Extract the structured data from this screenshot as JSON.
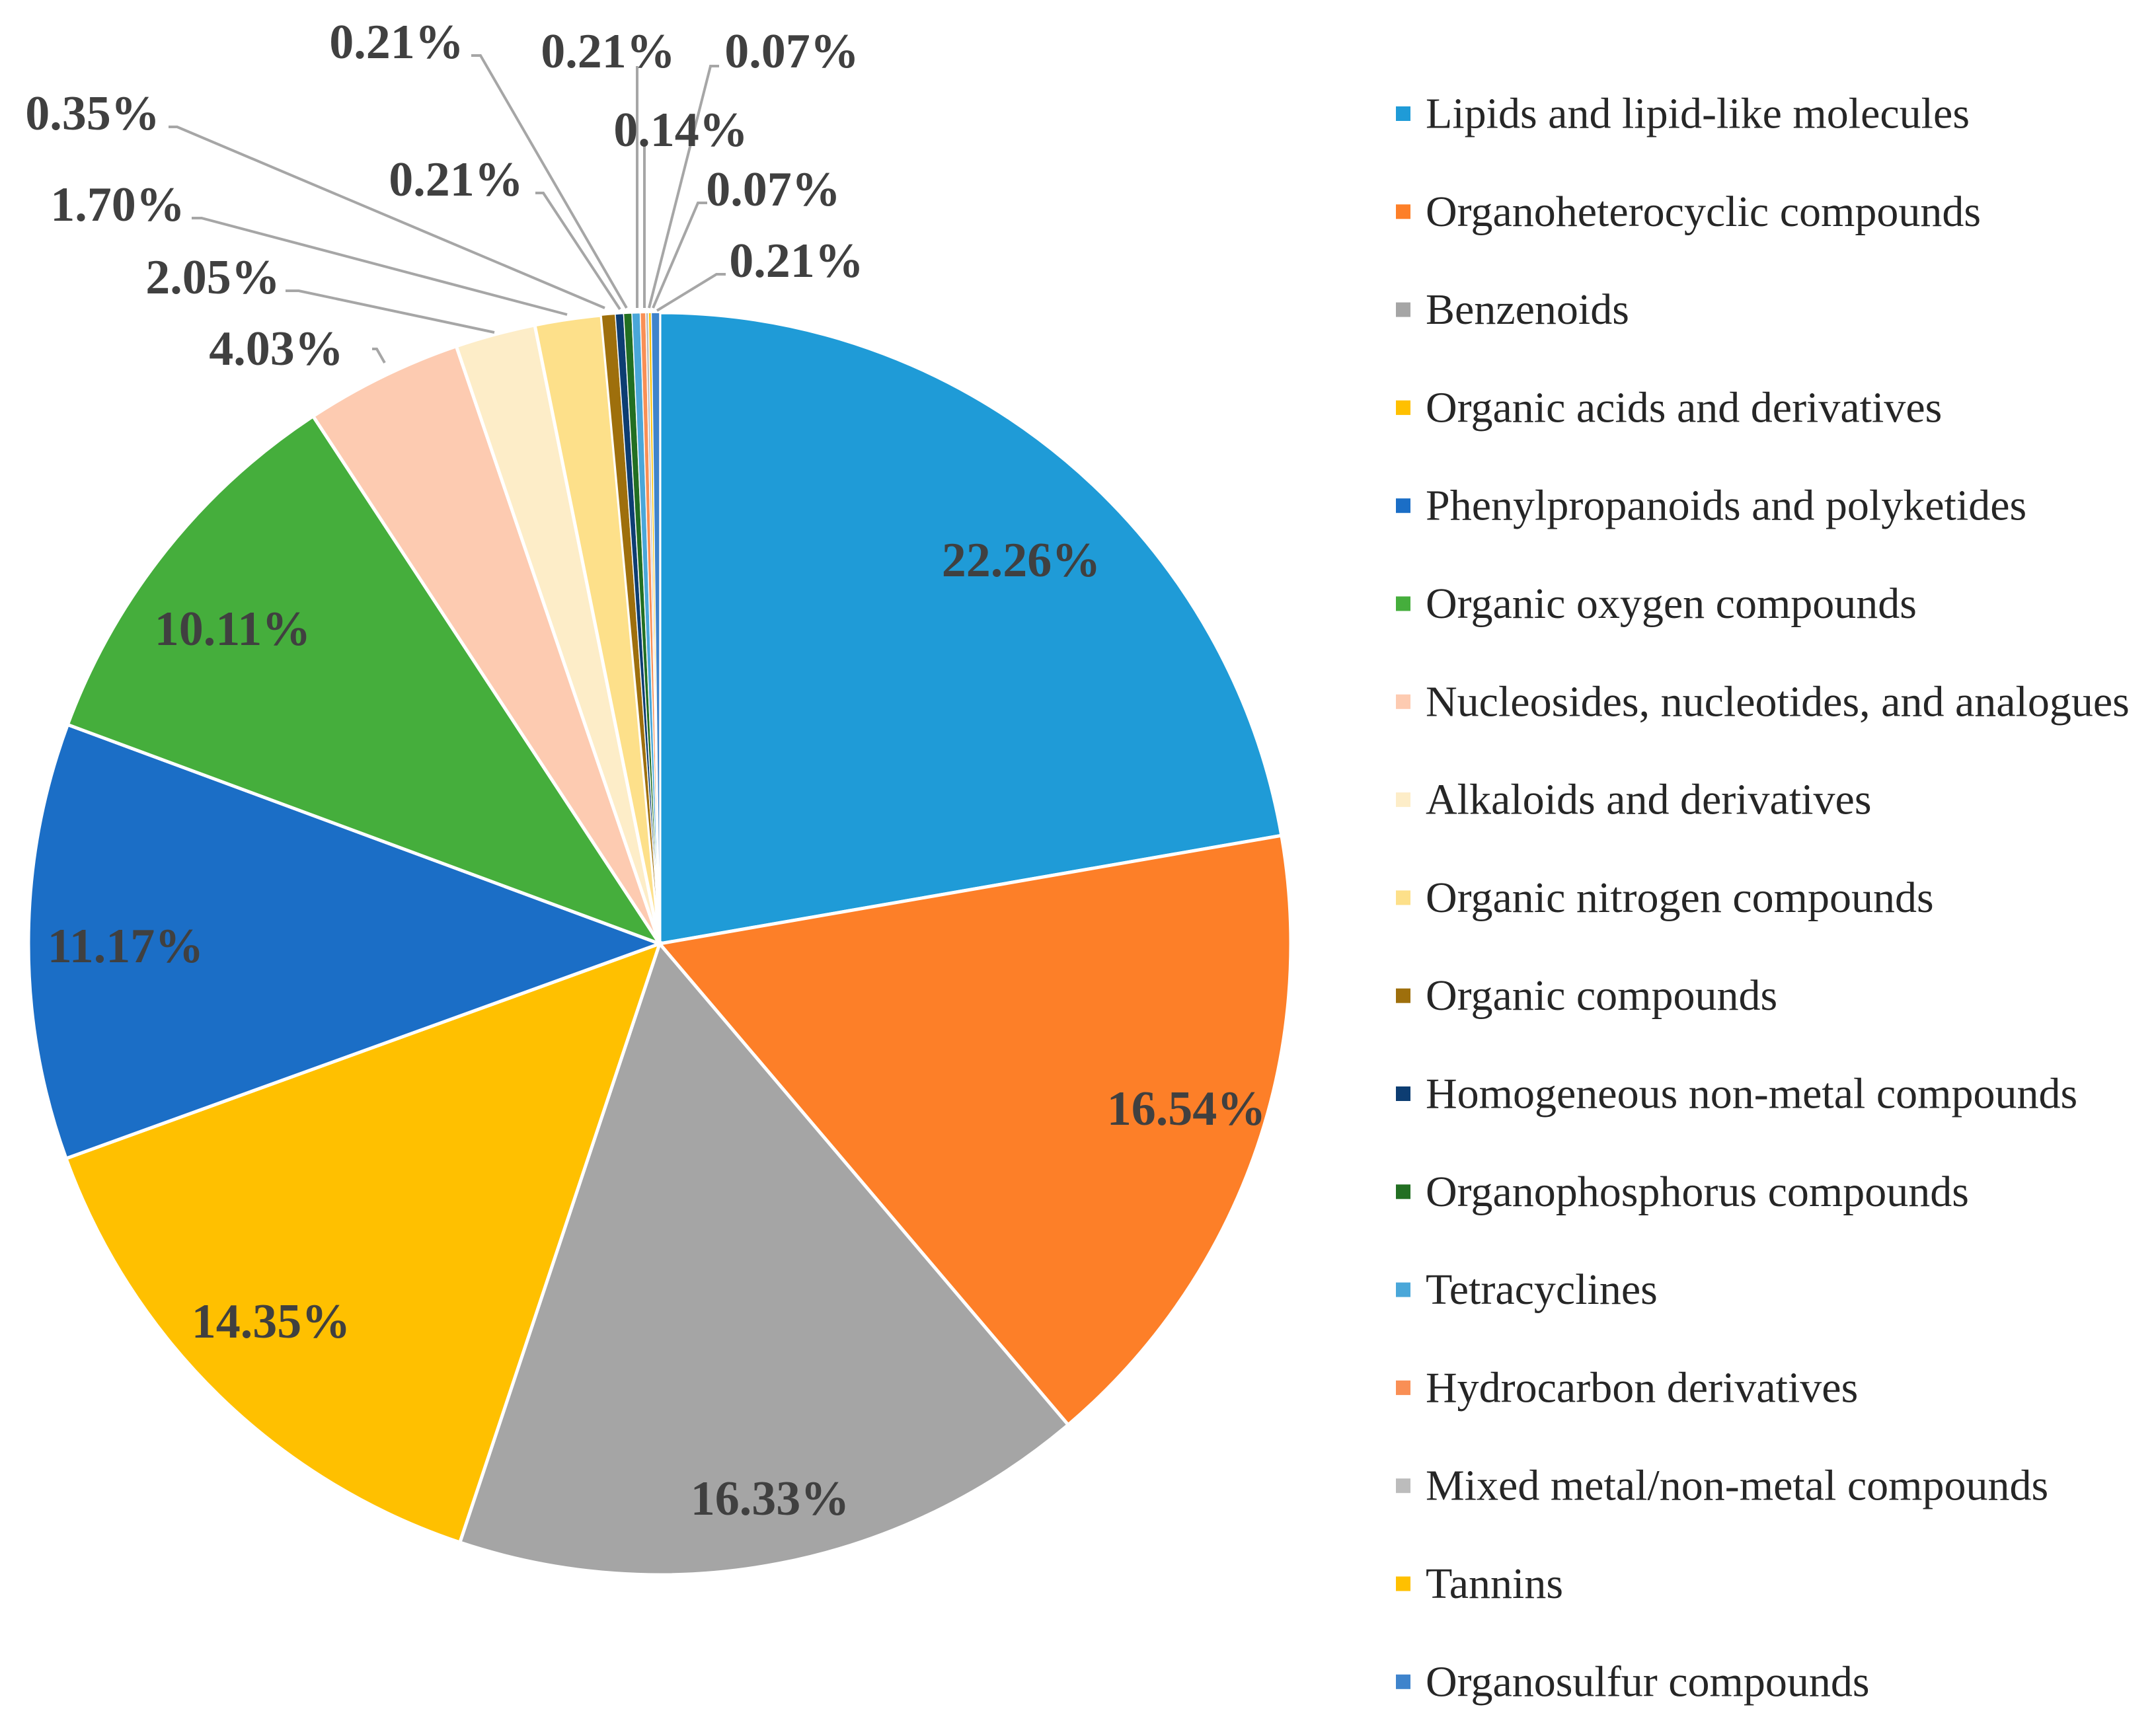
{
  "chart_data": {
    "type": "pie",
    "title": "",
    "start_angle_deg": 0,
    "direction": "clockwise",
    "slices": [
      {
        "name": "Lipids and lipid-like molecules",
        "value": 22.26,
        "label": "22.26%",
        "color": "#1f9bd7"
      },
      {
        "name": "Organoheterocyclic compounds",
        "value": 16.54,
        "label": "16.54%",
        "color": "#fd7f28"
      },
      {
        "name": "Benzenoids",
        "value": 16.33,
        "label": "16.33%",
        "color": "#a5a5a5"
      },
      {
        "name": "Organic acids and derivatives",
        "value": 14.35,
        "label": "14.35%",
        "color": "#ffc000"
      },
      {
        "name": "Phenylpropanoids and polyketides",
        "value": 11.17,
        "label": "11.17%",
        "color": "#1b6ec6"
      },
      {
        "name": "Organic oxygen compounds",
        "value": 10.11,
        "label": "10.11%",
        "color": "#45ae3c"
      },
      {
        "name": "Nucleosides, nucleotides, and analogues",
        "value": 4.03,
        "label": "4.03%",
        "color": "#fdcbb1"
      },
      {
        "name": "Alkaloids and derivatives",
        "value": 2.05,
        "label": "2.05%",
        "color": "#fdedc8"
      },
      {
        "name": "Organic nitrogen compounds",
        "value": 1.7,
        "label": "1.70%",
        "color": "#fde08a"
      },
      {
        "name": "Organic compounds",
        "value": 0.35,
        "label": "0.35%",
        "color": "#9e6f0c"
      },
      {
        "name": "Homogeneous non-metal compounds",
        "value": 0.21,
        "label": "0.21%",
        "color": "#0d3d72"
      },
      {
        "name": "Organophosphorus compounds",
        "value": 0.21,
        "label": "0.21%",
        "color": "#226f22"
      },
      {
        "name": "Tetracyclines",
        "value": 0.21,
        "label": "0.21%",
        "color": "#4aa7d9"
      },
      {
        "name": "Hydrocarbon derivatives",
        "value": 0.14,
        "label": "0.14%",
        "color": "#f98f55"
      },
      {
        "name": "Mixed metal/non-metal compounds",
        "value": 0.07,
        "label": "0.07%",
        "color": "#bcbcbc"
      },
      {
        "name": "Tannins",
        "value": 0.07,
        "label": "0.07%",
        "color": "#ffc000"
      },
      {
        "name": "Organosulfur compounds",
        "value": 0.21,
        "label": "0.21%",
        "color": "#3f84cc"
      }
    ],
    "legend_position": "right"
  }
}
